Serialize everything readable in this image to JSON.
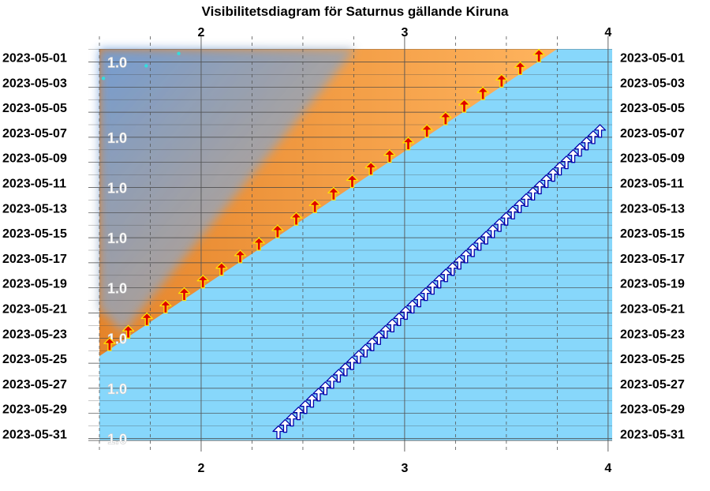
{
  "chart_data": {
    "type": "heatmap",
    "title": "Visibilitetsdiagram för Saturnus gällande Kiruna",
    "x_ticks": [
      2,
      3,
      4
    ],
    "xlim": [
      1.5,
      4.02
    ],
    "dates": [
      "2023-05-01",
      "2023-05-03",
      "2023-05-05",
      "2023-05-07",
      "2023-05-09",
      "2023-05-11",
      "2023-05-13",
      "2023-05-15",
      "2023-05-17",
      "2023-05-19",
      "2023-05-21",
      "2023-05-23",
      "2023-05-25",
      "2023-05-27",
      "2023-05-29",
      "2023-05-31"
    ],
    "magnitude_labels": [
      {
        "date": "2023-05-01",
        "text": "1.0"
      },
      {
        "date": "2023-05-07",
        "text": "1.0"
      },
      {
        "date": "2023-05-11",
        "text": "1.0"
      },
      {
        "date": "2023-05-15",
        "text": "1.0"
      },
      {
        "date": "2023-05-19",
        "text": "1.0"
      },
      {
        "date": "2023-05-23",
        "text": "1.0"
      },
      {
        "date": "2023-05-27",
        "text": "1.0"
      },
      {
        "date": "2023-05-31",
        "text": "1.0"
      }
    ],
    "twilight_boundary": {
      "start": {
        "date": "2023-05-01",
        "x": 3.75
      },
      "end": {
        "date": "2023-05-24",
        "x": 1.5
      }
    },
    "darkness_boundary": {
      "start": {
        "date": "2023-05-01",
        "x": 2.1
      },
      "end": {
        "date": "2023-05-24",
        "x": 1.5
      }
    },
    "saturn_rise_red": {
      "start": {
        "date": "2023-05-01",
        "x": 3.66
      },
      "end": {
        "date": "2023-05-24",
        "x": 1.55
      }
    },
    "saturn_rise_white": {
      "start": {
        "date": "2023-05-07",
        "x": 3.96
      },
      "end": {
        "date": "2023-05-31",
        "x": 2.38
      }
    },
    "colors": {
      "daylight": "#87d7fb",
      "twilight": "#ffa040",
      "night": "#6fa3dc",
      "grid": "#444444",
      "red_arrow": "#e00000",
      "yellow_edge": "#ffe000",
      "white_arrow": "#ffffff",
      "blue_edge": "#0000aa",
      "dots": "#33dddd"
    }
  }
}
